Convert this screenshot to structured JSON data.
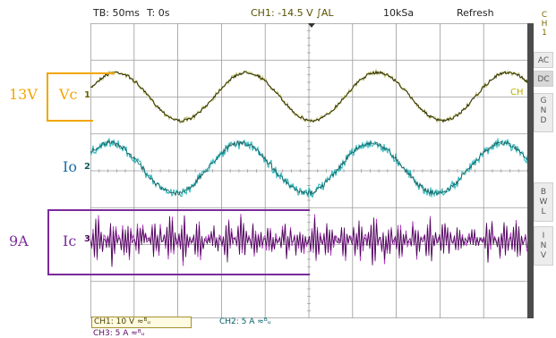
{
  "topbar": {
    "timebase": "TB: 50ms",
    "trigger_time": "T: 0s",
    "trigger_info": "CH1: -14.5 V ∫AL",
    "sample_rate": "10kSa",
    "mode": "Refresh"
  },
  "side_panel": {
    "channel_label": "C\nH\n1",
    "ac": "AC",
    "dc": "DC",
    "gnd": "G\nN\nD",
    "bwl": "B\nW\nL",
    "inv": "I\nN\nV"
  },
  "bottom": {
    "ch1_scale": "CH1: 10 V ≈ᴮᵤ",
    "ch2_scale": "CH2: 5 A ≈ᴮᵤ",
    "ch3_scale": "CH3: 5 A ≈ᴮᵤ"
  },
  "traces": [
    {
      "name": "Vc",
      "channel_marker": "1",
      "end_label": "CH",
      "color": "#2e2e00",
      "noise_color": "#c8c87a"
    },
    {
      "name": "Io",
      "channel_marker": "2",
      "color": "#145a5a",
      "noise_color": "#27b5b8"
    },
    {
      "name": "Ic",
      "channel_marker": "3",
      "color": "#4a0a55",
      "noise_color": "#b040c0"
    }
  ],
  "annotations": {
    "vc_amp": "13V",
    "vc_label": "Vc",
    "io_label": "Io",
    "ic_amp": "9A",
    "ic_label": "Ic"
  },
  "colors": {
    "vc_annotation": "#f2a500",
    "io_annotation": "#1b6fa8",
    "ic_annotation": "#7b2a9c",
    "grid": "#9a9a9a",
    "background": "#ffffff"
  }
}
